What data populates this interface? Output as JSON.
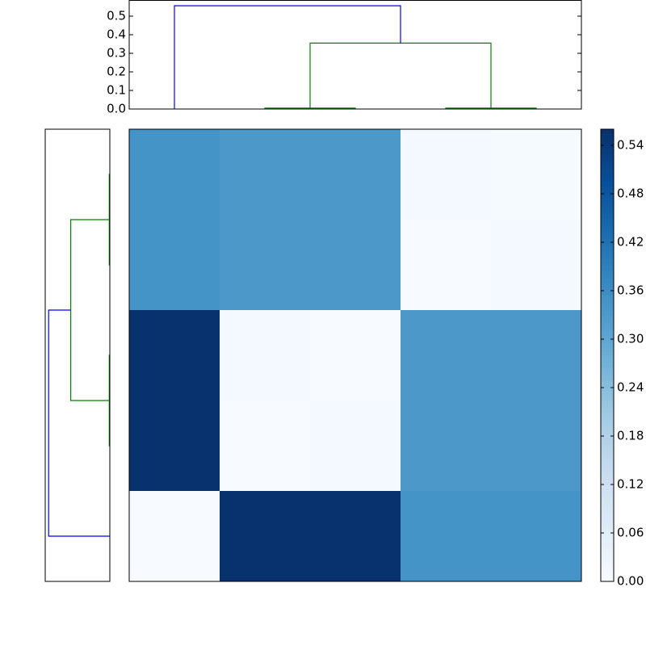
{
  "chart_data": {
    "type": "clustermap",
    "top_dendrogram": {
      "links": [
        {
          "x": [
            15,
            15,
            25,
            25
          ],
          "y": [
            0,
            0.005,
            0.005,
            0
          ],
          "color": "#008000"
        },
        {
          "x": [
            35,
            35,
            45,
            45
          ],
          "y": [
            0,
            0.005,
            0.005,
            0
          ],
          "color": "#008000"
        },
        {
          "x": [
            20,
            20,
            40,
            40
          ],
          "y": [
            0.005,
            0.355,
            0.355,
            0.005
          ],
          "color": "#008000"
        },
        {
          "x": [
            5,
            5,
            30,
            30
          ],
          "y": [
            0,
            0.556,
            0.556,
            0.355
          ],
          "color": "#0000ff"
        }
      ],
      "xlim": [
        0,
        50
      ],
      "ylim": [
        0,
        0.587
      ],
      "yticks": [
        {
          "value": 0,
          "label": "0.0"
        },
        0.1,
        0.2,
        0.3,
        0.4,
        0.5
      ]
    },
    "left_dendrogram": {
      "links": [
        {
          "x": [
            0,
            0.005,
            0.005,
            0
          ],
          "y": [
            35,
            35,
            45,
            45
          ],
          "color": "#008000"
        },
        {
          "x": [
            0,
            0.005,
            0.005,
            0
          ],
          "y": [
            15,
            15,
            25,
            25
          ],
          "color": "#008000"
        },
        {
          "x": [
            0.005,
            0.355,
            0.355,
            0.005
          ],
          "y": [
            20,
            20,
            40,
            40
          ],
          "color": "#008000"
        },
        {
          "x": [
            0,
            0.556,
            0.556,
            0.355
          ],
          "y": [
            5,
            5,
            30,
            30
          ],
          "color": "#0000ff"
        }
      ],
      "xlim": [
        0.587,
        0
      ],
      "ylim": [
        0,
        50
      ]
    },
    "heatmap": {
      "values": [
        [
          0.345,
          0.335,
          0.335,
          0.01,
          0.005
        ],
        [
          0.345,
          0.335,
          0.335,
          0.0,
          0.01
        ],
        [
          0.556,
          0.01,
          0.0,
          0.335,
          0.335
        ],
        [
          0.556,
          0.0,
          0.01,
          0.335,
          0.335
        ],
        [
          0.0,
          0.556,
          0.556,
          0.345,
          0.345
        ]
      ],
      "cmap": "Blues",
      "clim": [
        0,
        0.56
      ]
    },
    "colorbar": {
      "ticks": [
        {
          "value": 0,
          "label": "0.00"
        },
        0.06,
        0.12,
        0.18,
        0.24,
        {
          "value": 0.3,
          "label": "0.30"
        },
        0.36,
        0.42,
        0.48,
        0.54
      ]
    }
  }
}
